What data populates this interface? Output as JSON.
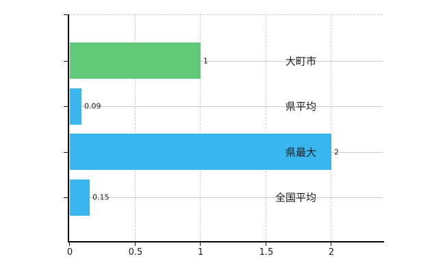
{
  "chart_data": {
    "type": "bar",
    "orientation": "horizontal",
    "title": "",
    "xlabel": "",
    "ylabel": "",
    "categories": [
      "大町市",
      "県平均",
      "県最大",
      "全国平均"
    ],
    "values": [
      1,
      0.09,
      2,
      0.15
    ],
    "value_labels": [
      "1",
      "0.09",
      "2",
      "0.15"
    ],
    "bar_colors": [
      "#63c97a",
      "#3ab6ee",
      "#3ab6ee",
      "#3ab6ee"
    ],
    "xlim": [
      0,
      2.4
    ],
    "xticks": [
      0,
      0.5,
      1,
      1.5,
      2
    ],
    "xtick_labels": [
      "0",
      "0.5",
      "1",
      "1.5",
      "2"
    ],
    "grid": true,
    "grid_horizontal_style": "solid",
    "grid_vertical_style": "dashed",
    "legend": false
  },
  "colors": {
    "grid": "#cccccc",
    "axis": "#000000",
    "text": "#1a1a1a",
    "background": "#ffffff"
  }
}
